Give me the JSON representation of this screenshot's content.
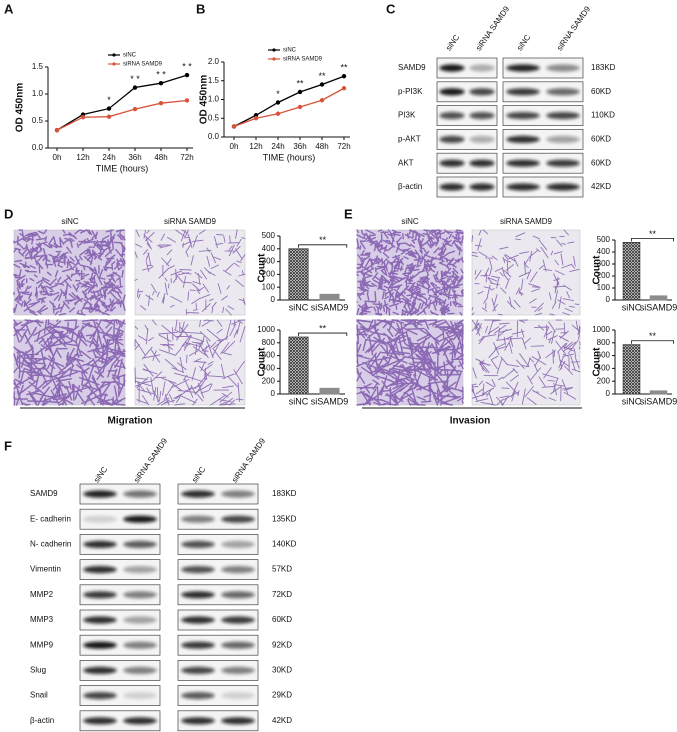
{
  "panel_labels": [
    "A",
    "B",
    "C",
    "D",
    "E",
    "F"
  ],
  "chart_data": [
    {
      "type": "line",
      "ylabel": "OD 450nm",
      "xlabel": "TIME (hours)",
      "categories": [
        "0h",
        "12h",
        "24h",
        "36h",
        "48h",
        "72h"
      ],
      "series": [
        {
          "name": "siNC",
          "color": "#000000",
          "values": [
            0.33,
            0.62,
            0.73,
            1.12,
            1.2,
            1.35
          ]
        },
        {
          "name": "siRNA SAMD9",
          "color": "#d9533b",
          "values": [
            0.33,
            0.57,
            0.58,
            0.72,
            0.83,
            0.88
          ]
        }
      ],
      "ylim": [
        0,
        1.5
      ],
      "yticks": [
        {
          "value": 0,
          "label": "0.0"
        },
        0.5,
        {
          "value": 1,
          "label": "1.0"
        },
        1.5
      ],
      "annotations": [
        {
          "category": "24h",
          "text": "*"
        },
        {
          "category": "36h",
          "text": "* *"
        },
        {
          "category": "48h",
          "text": "* *"
        },
        {
          "category": "72h",
          "text": "* *"
        }
      ]
    },
    {
      "type": "line",
      "ylabel": "OD 450nm",
      "xlabel": "TIME (hours)",
      "categories": [
        "0h",
        "12h",
        "24h",
        "36h",
        "48h",
        "72h"
      ],
      "series": [
        {
          "name": "siNC",
          "color": "#000000",
          "values": [
            0.28,
            0.58,
            0.92,
            1.2,
            1.4,
            1.62
          ]
        },
        {
          "name": "siRNA SAMD9",
          "color": "#d9533b",
          "values": [
            0.28,
            0.5,
            0.62,
            0.8,
            0.98,
            1.3
          ]
        }
      ],
      "ylim": [
        0,
        2
      ],
      "yticks": [
        {
          "value": 0,
          "label": "0.0"
        },
        0.5,
        {
          "value": 1,
          "label": "1.0"
        },
        1.5,
        {
          "value": 2,
          "label": "2.0"
        }
      ],
      "annotations": [
        {
          "category": "24h",
          "text": "*"
        },
        {
          "category": "36h",
          "text": "**"
        },
        {
          "category": "48h",
          "text": "**"
        },
        {
          "category": "72h",
          "text": "**"
        }
      ]
    },
    {
      "type": "bar",
      "ylabel": "Count",
      "categories": [
        "siNC",
        "siSAMD9"
      ],
      "values": [
        400,
        45
      ],
      "colors": [
        "#333333",
        "#8c8c8c"
      ],
      "bar_styles": [
        "crosshatch",
        "solid"
      ],
      "ylim": [
        0,
        500
      ],
      "yticks": [
        0,
        100,
        200,
        300,
        400,
        500
      ],
      "annotation": "**"
    },
    {
      "type": "bar",
      "ylabel": "Count",
      "categories": [
        "siNC",
        "siSAMD9"
      ],
      "values": [
        890,
        90
      ],
      "colors": [
        "#333333",
        "#8c8c8c"
      ],
      "bar_styles": [
        "crosshatch",
        "solid"
      ],
      "ylim": [
        0,
        1000
      ],
      "yticks": [
        0,
        200,
        400,
        600,
        800,
        1000
      ],
      "annotation": "**"
    },
    {
      "type": "bar",
      "ylabel": "Count",
      "categories": [
        "siNC",
        "siSAMD9"
      ],
      "values": [
        480,
        35
      ],
      "colors": [
        "#333333",
        "#8c8c8c"
      ],
      "bar_styles": [
        "crosshatch",
        "solid"
      ],
      "ylim": [
        0,
        500
      ],
      "yticks": [
        0,
        100,
        200,
        300,
        400,
        500
      ],
      "annotation": "**"
    },
    {
      "type": "bar",
      "ylabel": "Count",
      "categories": [
        "siNC",
        "siSAMD9"
      ],
      "values": [
        770,
        50
      ],
      "colors": [
        "#333333",
        "#8c8c8c"
      ],
      "bar_styles": [
        "crosshatch",
        "solid"
      ],
      "ylim": [
        0,
        1000
      ],
      "yticks": [
        0,
        200,
        400,
        600,
        800,
        1000
      ],
      "annotation": "**"
    }
  ],
  "blot_c": {
    "lanes": [
      "siNC",
      "siRNA SAMD9"
    ],
    "rows": [
      "SAMD9",
      "p-PI3K",
      "PI3K",
      "p-AKT",
      "AKT",
      "β-actin"
    ],
    "sizes": [
      "183KD",
      "60KD",
      "110KD",
      "60KD",
      "60KD",
      "42KD"
    ]
  },
  "figure_d": {
    "columns": [
      "siNC",
      "siRNA SAMD9"
    ],
    "caption": "Migration"
  },
  "figure_e": {
    "columns": [
      "siNC",
      "siRNA SAMD9"
    ],
    "caption": "Invasion"
  },
  "blot_f": {
    "lanes": [
      "siNC",
      "siRNA SAMD9"
    ],
    "rows": [
      "SAMD9",
      "E- cadherin",
      "N- cadherin",
      "Vimentin",
      "MMP2",
      "MMP3",
      "MMP9",
      "Slug",
      "Snail",
      "β-actin"
    ],
    "sizes": [
      "183KD",
      "135KD",
      "140KD",
      "57KD",
      "72KD",
      "60KD",
      "92KD",
      "30KD",
      "29KD",
      "42KD"
    ]
  }
}
